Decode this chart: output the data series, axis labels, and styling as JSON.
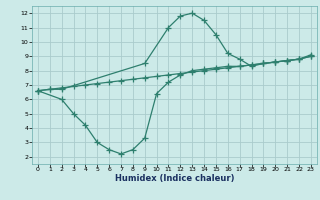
{
  "xlabel": "Humidex (Indice chaleur)",
  "bg_color": "#cceae8",
  "grid_color": "#aacccc",
  "line_color": "#2e7f6e",
  "xlim": [
    -0.5,
    23.5
  ],
  "ylim": [
    1.5,
    12.5
  ],
  "xticks": [
    0,
    1,
    2,
    3,
    4,
    5,
    6,
    7,
    8,
    9,
    10,
    11,
    12,
    13,
    14,
    15,
    16,
    17,
    18,
    19,
    20,
    21,
    22,
    23
  ],
  "yticks": [
    2,
    3,
    4,
    5,
    6,
    7,
    8,
    9,
    10,
    11,
    12
  ],
  "line1_x": [
    0,
    1,
    2,
    9,
    11,
    12,
    13,
    14,
    15,
    16,
    17,
    18,
    19,
    20,
    21,
    22,
    23
  ],
  "line1_y": [
    6.6,
    6.7,
    6.7,
    8.5,
    11.0,
    11.8,
    12.0,
    11.5,
    10.5,
    9.2,
    8.8,
    8.3,
    8.5,
    8.6,
    8.7,
    8.8,
    9.1
  ],
  "line2_x": [
    0,
    1,
    2,
    3,
    4,
    5,
    6,
    7,
    8,
    9,
    10,
    11,
    12,
    13,
    14,
    15,
    16,
    17,
    18,
    19,
    20,
    21,
    22,
    23
  ],
  "line2_y": [
    6.6,
    6.7,
    6.8,
    6.9,
    7.0,
    7.1,
    7.2,
    7.3,
    7.4,
    7.5,
    7.6,
    7.7,
    7.8,
    7.9,
    8.0,
    8.1,
    8.2,
    8.3,
    8.4,
    8.5,
    8.6,
    8.7,
    8.8,
    9.0
  ],
  "line3_x": [
    0,
    2,
    3,
    4,
    5,
    6,
    7,
    8,
    9,
    10,
    11,
    12,
    13,
    14,
    15,
    16,
    17,
    18,
    19,
    20,
    21,
    22,
    23
  ],
  "line3_y": [
    6.6,
    6.0,
    5.0,
    4.2,
    3.0,
    2.5,
    2.2,
    2.5,
    3.3,
    6.4,
    7.2,
    7.7,
    8.0,
    8.1,
    8.2,
    8.3,
    8.3,
    8.4,
    8.5,
    8.6,
    8.7,
    8.8,
    9.0
  ],
  "marker": "+",
  "markersize": 4,
  "linewidth": 0.9
}
